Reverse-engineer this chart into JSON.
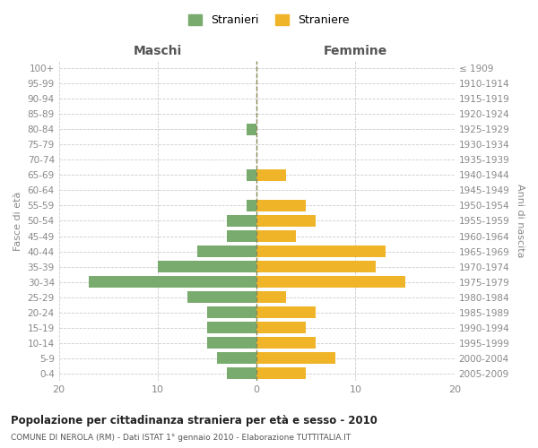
{
  "age_groups": [
    "100+",
    "95-99",
    "90-94",
    "85-89",
    "80-84",
    "75-79",
    "70-74",
    "65-69",
    "60-64",
    "55-59",
    "50-54",
    "45-49",
    "40-44",
    "35-39",
    "30-34",
    "25-29",
    "20-24",
    "15-19",
    "10-14",
    "5-9",
    "0-4"
  ],
  "birth_years": [
    "≤ 1909",
    "1910-1914",
    "1915-1919",
    "1920-1924",
    "1925-1929",
    "1930-1934",
    "1935-1939",
    "1940-1944",
    "1945-1949",
    "1950-1954",
    "1955-1959",
    "1960-1964",
    "1965-1969",
    "1970-1974",
    "1975-1979",
    "1980-1984",
    "1985-1989",
    "1990-1994",
    "1995-1999",
    "2000-2004",
    "2005-2009"
  ],
  "maschi": [
    0,
    0,
    0,
    0,
    1,
    0,
    0,
    1,
    0,
    1,
    3,
    3,
    6,
    10,
    17,
    7,
    5,
    5,
    5,
    4,
    3
  ],
  "femmine": [
    0,
    0,
    0,
    0,
    0,
    0,
    0,
    3,
    0,
    5,
    6,
    4,
    13,
    12,
    15,
    3,
    6,
    5,
    6,
    8,
    5
  ],
  "male_color": "#7aab6e",
  "female_color": "#f0b429",
  "title": "Popolazione per cittadinanza straniera per età e sesso - 2010",
  "subtitle": "COMUNE DI NEROLA (RM) - Dati ISTAT 1° gennaio 2010 - Elaborazione TUTTITALIA.IT",
  "ylabel_left": "Fasce di età",
  "ylabel_right": "Anni di nascita",
  "xlabel_maschi": "Maschi",
  "xlabel_femmine": "Femmine",
  "legend_maschi": "Stranieri",
  "legend_femmine": "Straniere",
  "xlim": 20,
  "background_color": "#ffffff",
  "grid_color": "#cccccc",
  "bar_height": 0.75,
  "label_color": "#888888",
  "center_line_color": "#888855",
  "vline_color": "#aaaaaa"
}
